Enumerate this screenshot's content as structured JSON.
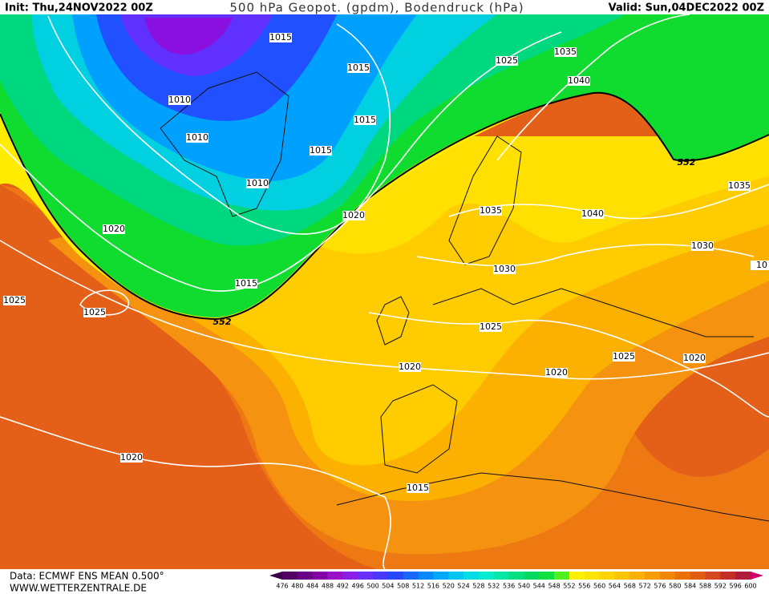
{
  "header": {
    "init": "Init: Thu,24NOV2022 00Z",
    "title": "500 hPa Geopot. (gpdm), Bodendruck (hPa)",
    "valid": "Valid: Sun,04DEC2022 00Z"
  },
  "footer": {
    "data": "Data: ECMWF ENS MEAN 0.500°",
    "site": "WWW.WETTERZENTRALE.DE"
  },
  "map": {
    "isobar_labels": [
      "1015",
      "1015",
      "1025",
      "1035",
      "1040",
      "1010",
      "1015",
      "1010",
      "1015",
      "552",
      "1010",
      "1035",
      "1020",
      "1035",
      "1040",
      "1020",
      "1030",
      "1030",
      "1015",
      "1025",
      "1025",
      "552",
      "1025",
      "1025",
      "1020",
      "1020",
      "1020",
      "1020",
      "1015",
      "10"
    ]
  },
  "colorbar": {
    "labels": [
      476,
      480,
      484,
      488,
      492,
      496,
      500,
      504,
      508,
      512,
      516,
      520,
      524,
      528,
      532,
      536,
      540,
      544,
      548,
      552,
      556,
      560,
      564,
      568,
      572,
      576,
      580,
      584,
      588,
      592,
      596,
      600
    ],
    "colors": [
      "#3c0048",
      "#520064",
      "#6a0084",
      "#8200a4",
      "#9a10c8",
      "#8a20e8",
      "#6a30ff",
      "#4a38ff",
      "#2848ff",
      "#1868ff",
      "#0888ff",
      "#00a8ff",
      "#00c4f4",
      "#00dce4",
      "#00ecd0",
      "#00e8a8",
      "#00e080",
      "#00d860",
      "#10e040",
      "#50f020",
      "#fff000",
      "#ffe400",
      "#ffd400",
      "#ffc400",
      "#ffb000",
      "#fa9c00",
      "#f28600",
      "#ea7000",
      "#e05c10",
      "#d44820",
      "#c43028",
      "#b01c3c",
      "#d0006c"
    ]
  }
}
